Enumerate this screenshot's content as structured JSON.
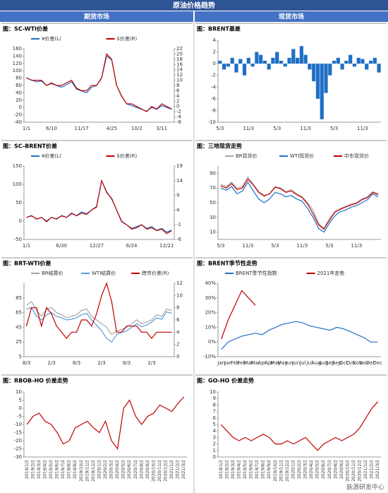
{
  "header": {
    "title": "原油价格趋势",
    "left": "期货市场",
    "right": "现货市场",
    "watermark": "能源研发中心"
  },
  "chart_data": [
    {
      "type": "line",
      "title": "图：SC-WTI价差",
      "legend": "top",
      "categories": [
        "1/1",
        null,
        null,
        null,
        null,
        "6/10",
        null,
        null,
        null,
        null,
        null,
        "11/17",
        null,
        null,
        null,
        null,
        null,
        "4/25",
        null,
        null,
        null,
        null,
        "10/2",
        null,
        null,
        null,
        null,
        "3/11",
        null,
        null
      ],
      "ylim": [
        -40,
        160
      ],
      "yticks": [
        160,
        140,
        120,
        100,
        80,
        60,
        40,
        20,
        0,
        -20,
        -40
      ],
      "y2lim": [
        -6,
        22
      ],
      "y2ticks": [
        22,
        20,
        18,
        16,
        14,
        12,
        10,
        8,
        6,
        4,
        2,
        0,
        -2,
        -4,
        -6
      ],
      "series": [
        {
          "name": "¥价差(L)",
          "color": "#1f6fc5",
          "values": [
            80,
            75,
            70,
            72,
            60,
            65,
            60,
            55,
            62,
            70,
            50,
            45,
            40,
            55,
            60,
            80,
            140,
            130,
            60,
            30,
            10,
            5,
            0,
            -5,
            -10,
            0,
            -5,
            5,
            0,
            -5
          ]
        },
        {
          "name": "$价差(R)",
          "color": "#c00000",
          "axis": "y2",
          "values": [
            11,
            10,
            10,
            10,
            8,
            9,
            8,
            8,
            9,
            10,
            7,
            6,
            6,
            8,
            8,
            11,
            20,
            18,
            8,
            4,
            1,
            1,
            0,
            -1,
            -2,
            0,
            -1,
            1,
            0,
            -1
          ]
        }
      ]
    },
    {
      "type": "bar",
      "title": "图：BRENT基差",
      "categories": [
        "5/3",
        null,
        null,
        null,
        null,
        null,
        null,
        "11/3",
        null,
        null,
        null,
        null,
        null,
        null,
        "5/3",
        null,
        null,
        null,
        null,
        null,
        null,
        "11/3",
        null,
        null,
        null,
        null,
        null,
        null,
        "5/3",
        null,
        null,
        null,
        null,
        null,
        null,
        "11/3",
        null,
        null,
        null,
        null
      ],
      "ylim": [
        -10,
        4
      ],
      "yticks": [
        4,
        2,
        0,
        -2,
        -4,
        -6,
        -8,
        -10
      ],
      "series": [
        {
          "color": "#1f6fc5",
          "values": [
            0.5,
            -1,
            -0.5,
            1,
            -1.5,
            0.8,
            -2,
            1,
            -0.5,
            2,
            1.5,
            0.5,
            -1,
            1,
            2,
            0.5,
            -0.5,
            1,
            2.5,
            1,
            3,
            1.5,
            -1,
            -3,
            -6,
            -9.5,
            -5,
            -2,
            0.5,
            1,
            -1,
            0.5,
            1.5,
            -0.5,
            1,
            0.8,
            -1,
            0.5,
            1,
            -1.5
          ]
        }
      ]
    },
    {
      "type": "line",
      "title": "图：SC-BRENT价差",
      "legend": "top",
      "categories": [
        "1/1",
        null,
        null,
        null,
        null,
        null,
        null,
        "6/30",
        null,
        null,
        null,
        null,
        null,
        null,
        "12/27",
        null,
        null,
        null,
        null,
        null,
        null,
        "6/24",
        null,
        null,
        null,
        null,
        null,
        null,
        "12/21",
        null
      ],
      "ylim": [
        -50,
        150
      ],
      "yticks": [
        150,
        100,
        50,
        0,
        -50
      ],
      "y2lim": [
        -6,
        19
      ],
      "y2ticks": [
        19,
        14,
        9,
        4,
        -1,
        -6
      ],
      "series": [
        {
          "name": "¥价差(L)",
          "color": "#1f6fc5",
          "values": [
            10,
            15,
            5,
            10,
            0,
            10,
            5,
            15,
            10,
            20,
            15,
            25,
            20,
            30,
            40,
            110,
            80,
            60,
            30,
            0,
            -10,
            -20,
            -15,
            -10,
            -20,
            -15,
            -25,
            -20,
            -30,
            -25
          ]
        },
        {
          "name": "$价差(R)",
          "color": "#c00000",
          "axis": "y2",
          "values": [
            1.5,
            2,
            1,
            1.5,
            0,
            1.5,
            1,
            2,
            1.5,
            3,
            2,
            3,
            2.5,
            4,
            5,
            14,
            10,
            8,
            4,
            0,
            -1,
            -2.5,
            -2,
            -1,
            -2.5,
            -2,
            -3,
            -2.5,
            -4,
            -3
          ]
        }
      ]
    },
    {
      "type": "line",
      "title": "图：三地现货走势",
      "legend": "top",
      "categories": [
        "5/3",
        null,
        null,
        null,
        null,
        "11/3",
        null,
        null,
        null,
        null,
        "5/3",
        null,
        null,
        null,
        null,
        "11/3",
        null,
        null,
        null,
        null,
        "5/3",
        null,
        null,
        null,
        null,
        "11/3",
        null,
        null,
        null,
        null
      ],
      "ylim": [
        0,
        100
      ],
      "yticks": [
        90,
        70,
        50,
        30,
        10
      ],
      "series": [
        {
          "name": "BR现货价",
          "color": "#a6a6a6",
          "values": [
            75,
            72,
            78,
            70,
            72,
            85,
            75,
            65,
            60,
            62,
            72,
            70,
            65,
            68,
            62,
            58,
            50,
            40,
            22,
            15,
            28,
            38,
            42,
            45,
            48,
            50,
            55,
            58,
            65,
            62
          ]
        },
        {
          "name": "WTI现货价",
          "color": "#1f6fc5",
          "values": [
            70,
            67,
            72,
            62,
            66,
            78,
            66,
            55,
            50,
            55,
            64,
            62,
            58,
            60,
            55,
            52,
            42,
            30,
            15,
            10,
            22,
            32,
            38,
            40,
            44,
            46,
            50,
            54,
            62,
            58
          ]
        },
        {
          "name": "中东现货价",
          "color": "#c00000",
          "values": [
            73,
            70,
            76,
            68,
            70,
            82,
            74,
            64,
            59,
            62,
            71,
            69,
            64,
            66,
            61,
            57,
            48,
            35,
            20,
            14,
            26,
            37,
            41,
            44,
            47,
            49,
            54,
            57,
            64,
            61
          ]
        }
      ]
    },
    {
      "type": "line",
      "title": "图：BRT-WTI价差",
      "legend": "top",
      "categories": [
        "8/3",
        null,
        null,
        null,
        null,
        "2/3",
        null,
        null,
        null,
        null,
        "8/3",
        null,
        null,
        null,
        null,
        "2/3",
        null,
        null,
        null,
        null,
        "8/3",
        null,
        null,
        null,
        null,
        "2/3",
        null,
        null,
        null,
        null
      ],
      "ylim": [
        5,
        105
      ],
      "yticks": [
        85,
        65,
        45,
        25,
        5
      ],
      "y2lim": [
        0,
        12
      ],
      "y2ticks": [
        12,
        10,
        8,
        6,
        4,
        2,
        0
      ],
      "series": [
        {
          "name": "BR结算价",
          "color": "#a6a6a6",
          "values": [
            75,
            80,
            68,
            60,
            70,
            72,
            65,
            62,
            58,
            60,
            62,
            68,
            70,
            60,
            55,
            50,
            45,
            35,
            40,
            42,
            45,
            50,
            55,
            50,
            52,
            55,
            62,
            60,
            70,
            68
          ]
        },
        {
          "name": "WTI结算价",
          "color": "#5b9bd5",
          "values": [
            70,
            72,
            60,
            55,
            62,
            65,
            60,
            58,
            55,
            56,
            58,
            62,
            64,
            55,
            48,
            40,
            30,
            25,
            35,
            38,
            40,
            45,
            50,
            46,
            48,
            52,
            58,
            56,
            66,
            64
          ]
        },
        {
          "name": "跨市价差(R)",
          "color": "#c00000",
          "axis": "y2",
          "values": [
            5,
            8,
            8,
            5,
            8,
            7,
            5,
            4,
            3,
            4,
            4,
            6,
            6,
            5,
            7,
            10,
            12,
            9,
            4,
            4,
            5,
            5,
            5,
            4,
            4,
            3,
            4,
            4,
            4,
            4
          ]
        }
      ]
    },
    {
      "type": "line",
      "title": "图：BRENT季节性走势",
      "legend": "top",
      "categories": [
        "Jan",
        "Jan",
        "Feb",
        "Feb",
        "Mar",
        "Mar",
        "Apr",
        "Apr",
        "May",
        "May",
        "Jun",
        "Jun",
        "Jul",
        "Jul",
        "Aug",
        "Aug",
        "Sep",
        "Sep",
        "Oct",
        "Oct",
        "Nov",
        "Nov",
        "Dec",
        "Dec"
      ],
      "ylim": [
        -10,
        40
      ],
      "yticks": [
        {
          "value": 40,
          "label": "40%"
        },
        {
          "value": 30,
          "label": "30%"
        },
        {
          "value": 20,
          "label": "20%"
        },
        {
          "value": 10,
          "label": "10%"
        },
        {
          "value": 0,
          "label": "0%"
        },
        {
          "value": -10,
          "label": "-10%"
        }
      ],
      "series": [
        {
          "name": "BRENT季节性指数",
          "color": "#1f6fc5",
          "values": [
            -5,
            0,
            2,
            4,
            5,
            6,
            5,
            8,
            10,
            12,
            13,
            14,
            13,
            11,
            10,
            9,
            8,
            10,
            9,
            7,
            5,
            3,
            0,
            0
          ]
        },
        {
          "name": "2021年走势",
          "color": "#c00000",
          "values": [
            2,
            15,
            25,
            35,
            30,
            25,
            null,
            null,
            null,
            null,
            null,
            null,
            null,
            null,
            null,
            null,
            null,
            null,
            null,
            null,
            null,
            null,
            null,
            null
          ]
        }
      ]
    },
    {
      "type": "line",
      "title": "图：RBOB-HO 价差走势",
      "categories": [
        "2019/1/2",
        "2019/2/2",
        "2019/3/2",
        "2019/4/2",
        "2019/5/2",
        "2019/6/2",
        "2019/7/2",
        "2019/8/2",
        "2019/9/2",
        "2019/10/2",
        "2019/11/2",
        "2019/12/2",
        "2020/1/2",
        "2020/2/2",
        "2020/3/2",
        "2020/4/2",
        "2020/5/2",
        "2020/6/2",
        "2020/7/2",
        "2020/8/2",
        "2020/9/2",
        "2020/10/2",
        "2020/11/2",
        "2020/12/2",
        "2021/1/2",
        "2021/2/2",
        "2021/3/2"
      ],
      "ylim": [
        -30,
        10
      ],
      "yticks": [
        10,
        5,
        0,
        -5,
        -10,
        -15,
        -20,
        -25,
        -30
      ],
      "series": [
        {
          "color": "#c00000",
          "values": [
            -10,
            -5,
            -3,
            -8,
            -10,
            -15,
            -22,
            -20,
            -12,
            -10,
            -8,
            -12,
            -15,
            -8,
            -20,
            -25,
            0,
            5,
            -5,
            -10,
            -5,
            -3,
            2,
            0,
            -2,
            3,
            7
          ]
        }
      ]
    },
    {
      "type": "line",
      "title": "图：GO-HO 价差走势",
      "categories": [
        "2019/1/2",
        "2019/2/2",
        "2019/3/2",
        "2019/4/2",
        "2019/5/2",
        "2019/6/2",
        "2019/7/2",
        "2019/8/2",
        "2019/9/2",
        "2019/10/2",
        "2019/11/2",
        "2019/12/2",
        "2020/1/2",
        "2020/2/2",
        "2020/3/2",
        "2020/4/2",
        "2020/5/2",
        "2020/6/2",
        "2020/7/2",
        "2020/8/2",
        "2020/9/2",
        "2020/10/2",
        "2020/11/2",
        "2020/12/2",
        "2021/1/2",
        "2021/2/2",
        "2021/3/2"
      ],
      "ylim": [
        0,
        10
      ],
      "yticks": [
        10,
        9,
        8,
        7,
        6,
        5,
        4,
        3,
        2,
        1,
        0
      ],
      "series": [
        {
          "color": "#c00000",
          "values": [
            5,
            4,
            3,
            2.5,
            3,
            2.5,
            3,
            3.5,
            3,
            2,
            2,
            2.5,
            2,
            2.5,
            3,
            2,
            1,
            2,
            2.5,
            3,
            2.5,
            3,
            3.5,
            4.5,
            6,
            7.5,
            8.5
          ]
        }
      ]
    }
  ]
}
